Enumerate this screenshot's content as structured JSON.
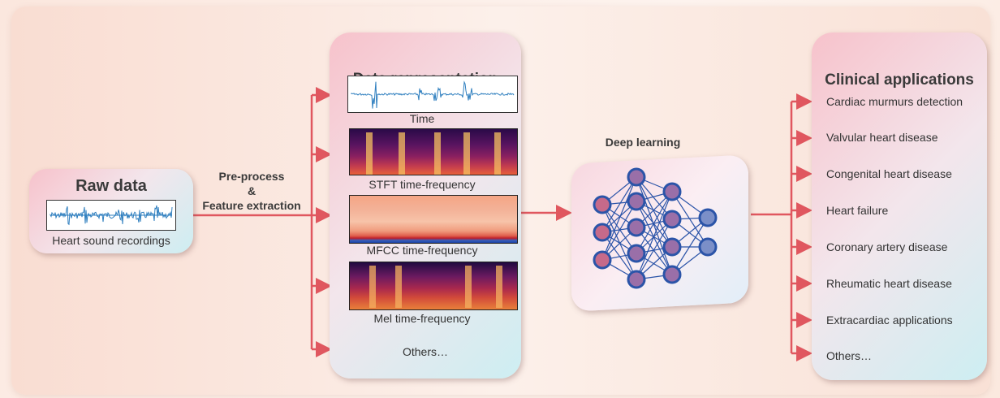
{
  "raw": {
    "title": "Raw data",
    "caption": "Heart sound recordings"
  },
  "preprocess": {
    "line1": "Pre-process",
    "line2": "&",
    "line3": "Feature extraction"
  },
  "representation": {
    "title": "Data representation",
    "items": [
      "Time",
      "STFT time-frequency",
      "MFCC time-frequency",
      "Mel time-frequency",
      "Others…"
    ]
  },
  "deep": {
    "label": "Deep learning"
  },
  "clinical": {
    "title": "Clinical applications",
    "items": [
      "Cardiac murmurs detection",
      "Valvular heart disease",
      "Congenital heart disease",
      "Heart failure",
      "Coronary artery disease",
      "Rheumatic heart disease",
      "Extracardiac applications",
      "Others…"
    ]
  },
  "colors": {
    "arrow": "#e0575f",
    "waveform": "#2f7fbf",
    "node_fill": "#7a6cb5",
    "node_stroke": "#2b54a8"
  }
}
